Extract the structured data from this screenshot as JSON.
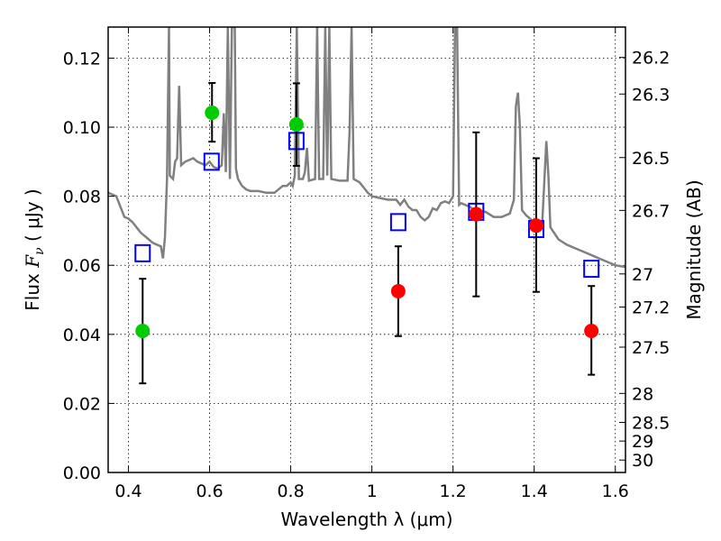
{
  "chart_data": {
    "type": "scatter",
    "xlabel": "Wavelength  λ (μm)",
    "ylabel_left": {
      "prefix": "Flux  ",
      "symbol_main": "F",
      "symbol_sub": "ν",
      "units": " ( μJy )"
    },
    "ylabel_right": "Magnitude (AB)",
    "xlim": [
      0.35,
      1.625
    ],
    "ylim": [
      0,
      0.129
    ],
    "grid": true,
    "x_ticks": [
      0.4,
      0.6,
      0.8,
      1.0,
      1.2,
      1.4,
      1.6
    ],
    "x_tick_labels": [
      "0.4",
      "0.6",
      "0.8",
      "1",
      "1.2",
      "1.4",
      "1.6"
    ],
    "y_ticks": [
      0.0,
      0.02,
      0.04,
      0.06,
      0.08,
      0.1,
      0.12
    ],
    "y_tick_labels": [
      "0.00",
      "0.02",
      "0.04",
      "0.06",
      "0.08",
      "0.10",
      "0.12"
    ],
    "right_ticks": [
      {
        "label": "26.2",
        "flux": 0.1202
      },
      {
        "label": "26.3",
        "flux": 0.1096
      },
      {
        "label": "26.5",
        "flux": 0.0912
      },
      {
        "label": "26.7",
        "flux": 0.0759
      },
      {
        "label": "27",
        "flux": 0.0575
      },
      {
        "label": "27.2",
        "flux": 0.0479
      },
      {
        "label": "27.5",
        "flux": 0.0363
      },
      {
        "label": "28",
        "flux": 0.0229
      },
      {
        "label": "28.5",
        "flux": 0.0145
      },
      {
        "label": "29",
        "flux": 0.0091
      },
      {
        "label": "30",
        "flux": 0.0036
      }
    ],
    "series": [
      {
        "kind": "model_spectrum",
        "color": "#808080",
        "points": [
          [
            0.35,
            0.081
          ],
          [
            0.37,
            0.08
          ],
          [
            0.38,
            0.077
          ],
          [
            0.39,
            0.074
          ],
          [
            0.4,
            0.0735
          ],
          [
            0.41,
            0.0725
          ],
          [
            0.42,
            0.071
          ],
          [
            0.43,
            0.0695
          ],
          [
            0.44,
            0.0685
          ],
          [
            0.45,
            0.0675
          ],
          [
            0.46,
            0.0665
          ],
          [
            0.47,
            0.066
          ],
          [
            0.48,
            0.0655
          ],
          [
            0.485,
            0.062
          ],
          [
            0.49,
            0.068
          ],
          [
            0.495,
            0.085
          ],
          [
            0.5,
            0.129
          ],
          [
            0.502,
            0.086
          ],
          [
            0.51,
            0.085
          ],
          [
            0.515,
            0.09
          ],
          [
            0.52,
            0.091
          ],
          [
            0.525,
            0.112
          ],
          [
            0.53,
            0.089
          ],
          [
            0.54,
            0.09
          ],
          [
            0.55,
            0.0905
          ],
          [
            0.56,
            0.091
          ],
          [
            0.57,
            0.09
          ],
          [
            0.58,
            0.0895
          ],
          [
            0.59,
            0.089
          ],
          [
            0.6,
            0.09
          ],
          [
            0.61,
            0.0885
          ],
          [
            0.62,
            0.088
          ],
          [
            0.63,
            0.089
          ],
          [
            0.635,
            0.104
          ],
          [
            0.64,
            0.087
          ],
          [
            0.645,
            0.129
          ],
          [
            0.65,
            0.085
          ],
          [
            0.655,
            0.129
          ],
          [
            0.658,
            0.129
          ],
          [
            0.662,
            0.129
          ],
          [
            0.665,
            0.088
          ],
          [
            0.67,
            0.085
          ],
          [
            0.68,
            0.083
          ],
          [
            0.69,
            0.082
          ],
          [
            0.7,
            0.0815
          ],
          [
            0.72,
            0.0815
          ],
          [
            0.74,
            0.081
          ],
          [
            0.76,
            0.081
          ],
          [
            0.78,
            0.083
          ],
          [
            0.79,
            0.083
          ],
          [
            0.8,
            0.084
          ],
          [
            0.805,
            0.083
          ],
          [
            0.81,
            0.086
          ],
          [
            0.815,
            0.129
          ],
          [
            0.82,
            0.085
          ],
          [
            0.83,
            0.085
          ],
          [
            0.835,
            0.087
          ],
          [
            0.84,
            0.094
          ],
          [
            0.845,
            0.0845
          ],
          [
            0.86,
            0.085
          ],
          [
            0.865,
            0.129
          ],
          [
            0.87,
            0.085
          ],
          [
            0.88,
            0.085
          ],
          [
            0.885,
            0.129
          ],
          [
            0.89,
            0.086
          ],
          [
            0.895,
            0.129
          ],
          [
            0.9,
            0.085
          ],
          [
            0.92,
            0.0845
          ],
          [
            0.94,
            0.0845
          ],
          [
            0.945,
            0.099
          ],
          [
            0.95,
            0.129
          ],
          [
            0.955,
            0.085
          ],
          [
            0.97,
            0.084
          ],
          [
            0.99,
            0.081
          ],
          [
            1.0,
            0.08
          ],
          [
            1.02,
            0.0795
          ],
          [
            1.04,
            0.079
          ],
          [
            1.06,
            0.079
          ],
          [
            1.07,
            0.0775
          ],
          [
            1.08,
            0.079
          ],
          [
            1.09,
            0.077
          ],
          [
            1.1,
            0.076
          ],
          [
            1.11,
            0.076
          ],
          [
            1.12,
            0.074
          ],
          [
            1.13,
            0.073
          ],
          [
            1.14,
            0.074
          ],
          [
            1.15,
            0.0765
          ],
          [
            1.16,
            0.076
          ],
          [
            1.17,
            0.078
          ],
          [
            1.18,
            0.0785
          ],
          [
            1.19,
            0.078
          ],
          [
            1.2,
            0.08
          ],
          [
            1.205,
            0.129
          ],
          [
            1.21,
            0.129
          ],
          [
            1.215,
            0.0775
          ],
          [
            1.22,
            0.078
          ],
          [
            1.24,
            0.077
          ],
          [
            1.26,
            0.0755
          ],
          [
            1.28,
            0.0755
          ],
          [
            1.3,
            0.074
          ],
          [
            1.32,
            0.074
          ],
          [
            1.34,
            0.075
          ],
          [
            1.35,
            0.079
          ],
          [
            1.355,
            0.106
          ],
          [
            1.36,
            0.11
          ],
          [
            1.365,
            0.1
          ],
          [
            1.37,
            0.076
          ],
          [
            1.38,
            0.0745
          ],
          [
            1.4,
            0.0725
          ],
          [
            1.41,
            0.072
          ],
          [
            1.42,
            0.0725
          ],
          [
            1.43,
            0.096
          ],
          [
            1.435,
            0.086
          ],
          [
            1.44,
            0.071
          ],
          [
            1.46,
            0.0675
          ],
          [
            1.48,
            0.066
          ],
          [
            1.5,
            0.065
          ],
          [
            1.52,
            0.064
          ],
          [
            1.54,
            0.063
          ],
          [
            1.56,
            0.062
          ],
          [
            1.58,
            0.061
          ],
          [
            1.6,
            0.06
          ],
          [
            1.625,
            0.0595
          ]
        ]
      },
      {
        "kind": "model_photometry",
        "color": "#0000ff",
        "points": [
          [
            0.435,
            0.0635
          ],
          [
            0.605,
            0.09
          ],
          [
            0.814,
            0.096
          ],
          [
            1.065,
            0.0725
          ],
          [
            1.257,
            0.0755
          ],
          [
            1.405,
            0.0705
          ],
          [
            1.541,
            0.059
          ]
        ]
      },
      {
        "kind": "observed",
        "points": [
          {
            "x": 0.435,
            "y": 0.041,
            "err_lo": 0.0258,
            "err_hi": 0.0561,
            "color": "#00cc00"
          },
          {
            "x": 0.606,
            "y": 0.1042,
            "err_lo": 0.0958,
            "err_hi": 0.1128,
            "color": "#00cc00"
          },
          {
            "x": 0.814,
            "y": 0.1008,
            "err_lo": 0.0888,
            "err_hi": 0.1127,
            "color": "#00cc00"
          },
          {
            "x": 1.065,
            "y": 0.0525,
            "err_lo": 0.0395,
            "err_hi": 0.0655,
            "color": "#ff0000"
          },
          {
            "x": 1.257,
            "y": 0.0748,
            "err_lo": 0.051,
            "err_hi": 0.0985,
            "color": "#ff0000"
          },
          {
            "x": 1.405,
            "y": 0.0715,
            "err_lo": 0.0523,
            "err_hi": 0.091,
            "color": "#ff0000"
          },
          {
            "x": 1.541,
            "y": 0.041,
            "err_lo": 0.0283,
            "err_hi": 0.054,
            "color": "#ff0000"
          }
        ]
      }
    ]
  }
}
